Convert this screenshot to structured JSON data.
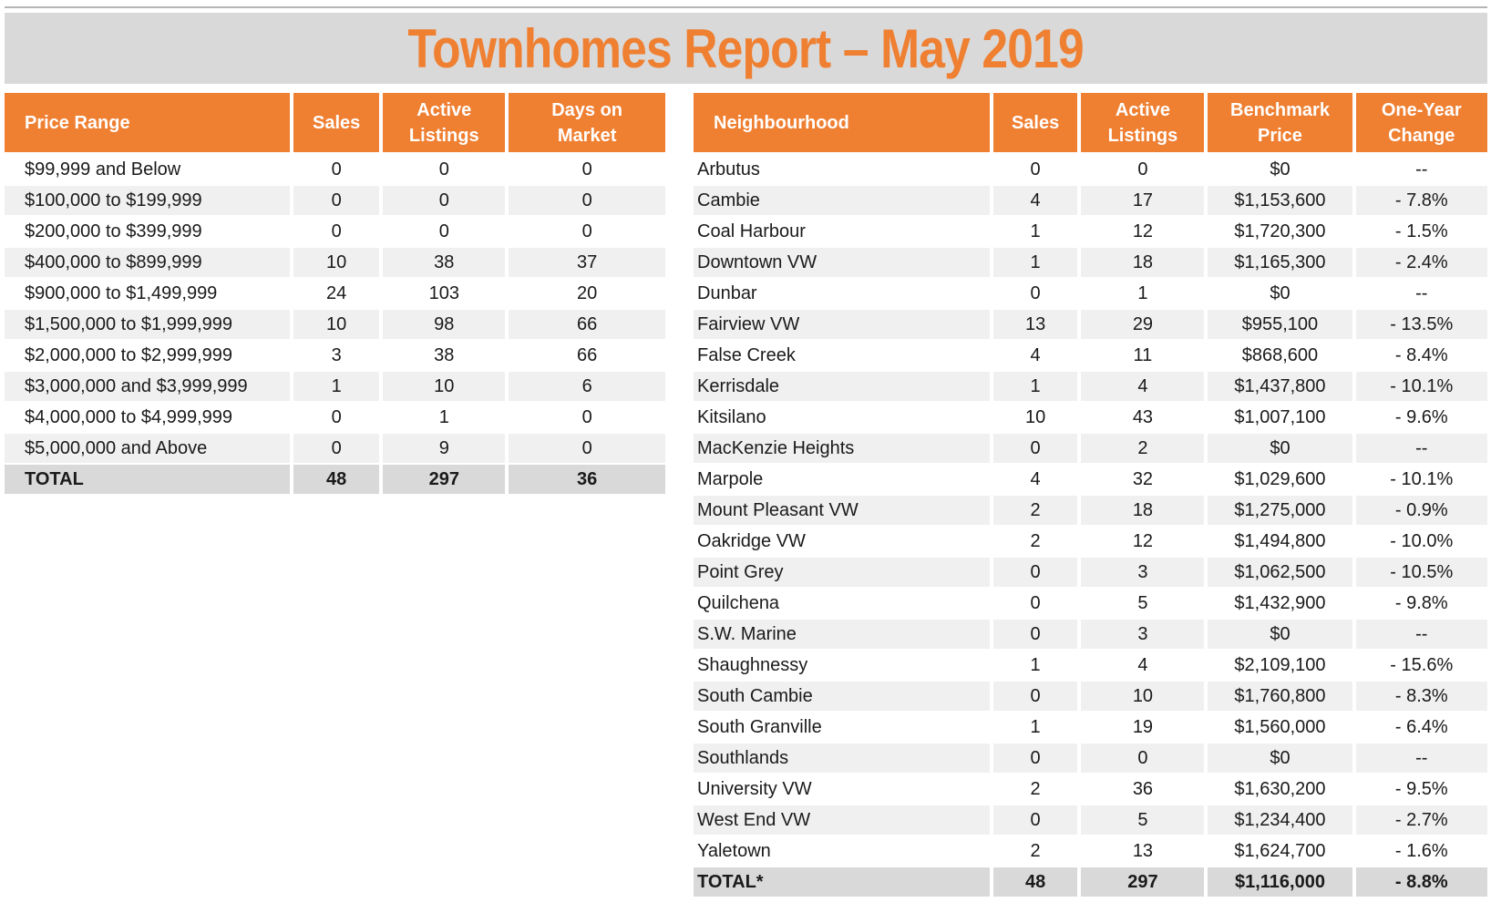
{
  "title": "Townhomes Report – May 2019",
  "price_table": {
    "headers": [
      "Price Range",
      "Sales",
      "Active\nListings",
      "Days on\nMarket"
    ],
    "rows": [
      [
        "$99,999 and Below",
        "0",
        "0",
        "0"
      ],
      [
        "$100,000 to $199,999",
        "0",
        "0",
        "0"
      ],
      [
        "$200,000 to $399,999",
        "0",
        "0",
        "0"
      ],
      [
        "$400,000 to $899,999",
        "10",
        "38",
        "37"
      ],
      [
        "$900,000 to $1,499,999",
        "24",
        "103",
        "20"
      ],
      [
        "$1,500,000 to $1,999,999",
        "10",
        "98",
        "66"
      ],
      [
        "$2,000,000 to $2,999,999",
        "3",
        "38",
        "66"
      ],
      [
        "$3,000,000 and $3,999,999",
        "1",
        "10",
        "6"
      ],
      [
        "$4,000,000 to $4,999,999",
        "0",
        "1",
        "0"
      ],
      [
        "$5,000,000 and Above",
        "0",
        "9",
        "0"
      ]
    ],
    "total": [
      "TOTAL",
      "48",
      "297",
      "36"
    ]
  },
  "neighbourhood_table": {
    "headers": [
      "Neighbourhood",
      "Sales",
      "Active\nListings",
      "Benchmark\nPrice",
      "One-Year\nChange"
    ],
    "rows": [
      [
        "Arbutus",
        "0",
        "0",
        "$0",
        "--"
      ],
      [
        "Cambie",
        "4",
        "17",
        "$1,153,600",
        "- 7.8%"
      ],
      [
        "Coal Harbour",
        "1",
        "12",
        "$1,720,300",
        "- 1.5%"
      ],
      [
        "Downtown VW",
        "1",
        "18",
        "$1,165,300",
        "- 2.4%"
      ],
      [
        "Dunbar",
        "0",
        "1",
        "$0",
        "--"
      ],
      [
        "Fairview VW",
        "13",
        "29",
        "$955,100",
        "- 13.5%"
      ],
      [
        "False Creek",
        "4",
        "11",
        "$868,600",
        "- 8.4%"
      ],
      [
        "Kerrisdale",
        "1",
        "4",
        "$1,437,800",
        "- 10.1%"
      ],
      [
        "Kitsilano",
        "10",
        "43",
        "$1,007,100",
        "- 9.6%"
      ],
      [
        "MacKenzie Heights",
        "0",
        "2",
        "$0",
        "--"
      ],
      [
        "Marpole",
        "4",
        "32",
        "$1,029,600",
        "- 10.1%"
      ],
      [
        "Mount Pleasant VW",
        "2",
        "18",
        "$1,275,000",
        "- 0.9%"
      ],
      [
        "Oakridge VW",
        "2",
        "12",
        "$1,494,800",
        "- 10.0%"
      ],
      [
        "Point Grey",
        "0",
        "3",
        "$1,062,500",
        "- 10.5%"
      ],
      [
        "Quilchena",
        "0",
        "5",
        "$1,432,900",
        "- 9.8%"
      ],
      [
        "S.W. Marine",
        "0",
        "3",
        "$0",
        "--"
      ],
      [
        "Shaughnessy",
        "1",
        "4",
        "$2,109,100",
        "- 15.6%"
      ],
      [
        "South Cambie",
        "0",
        "10",
        "$1,760,800",
        "- 8.3%"
      ],
      [
        "South Granville",
        "1",
        "19",
        "$1,560,000",
        "- 6.4%"
      ],
      [
        "Southlands",
        "0",
        "0",
        "$0",
        "--"
      ],
      [
        "University VW",
        "2",
        "36",
        "$1,630,200",
        "- 9.5%"
      ],
      [
        "West End VW",
        "0",
        "5",
        "$1,234,400",
        "- 2.7%"
      ],
      [
        "Yaletown",
        "2",
        "13",
        "$1,624,700",
        "- 1.6%"
      ]
    ],
    "total": [
      "TOTAL*",
      "48",
      "297",
      "$1,116,000",
      "- 8.8%"
    ]
  },
  "colors": {
    "accent": "#ef7f31",
    "title_bg": "#d9d9d9",
    "stripe": "#f0f0f0"
  }
}
